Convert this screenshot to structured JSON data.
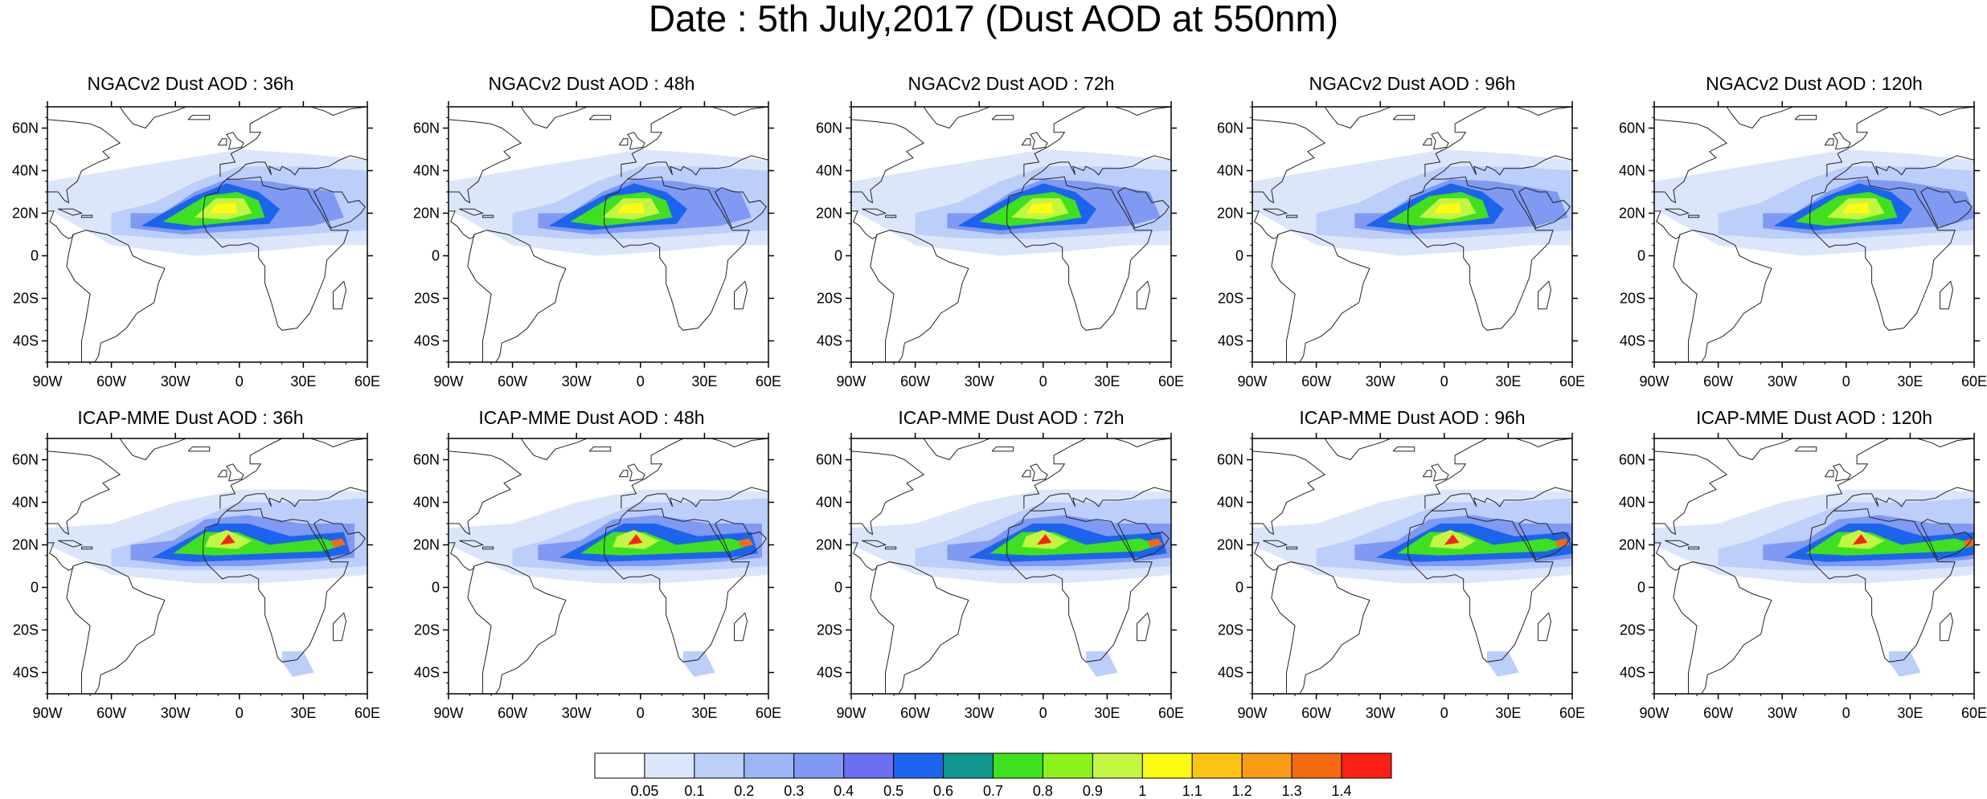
{
  "title": "Date : 5th July,2017 (Dust AOD at 550nm)",
  "panels": [
    {
      "model": "NGACv2",
      "title": "NGACv2 Dust AOD : 36h",
      "lead": "36h"
    },
    {
      "model": "NGACv2",
      "title": "NGACv2 Dust AOD : 48h",
      "lead": "48h"
    },
    {
      "model": "NGACv2",
      "title": "NGACv2 Dust AOD : 72h",
      "lead": "72h"
    },
    {
      "model": "NGACv2",
      "title": "NGACv2 Dust AOD : 96h",
      "lead": "96h"
    },
    {
      "model": "NGACv2",
      "title": "NGACv2 Dust AOD : 120h",
      "lead": "120h"
    },
    {
      "model": "ICAP-MME",
      "title": "ICAP-MME Dust AOD : 36h",
      "lead": "36h"
    },
    {
      "model": "ICAP-MME",
      "title": "ICAP-MME Dust AOD : 48h",
      "lead": "48h"
    },
    {
      "model": "ICAP-MME",
      "title": "ICAP-MME Dust AOD : 72h",
      "lead": "72h"
    },
    {
      "model": "ICAP-MME",
      "title": "ICAP-MME Dust AOD : 96h",
      "lead": "96h"
    },
    {
      "model": "ICAP-MME",
      "title": "ICAP-MME Dust AOD : 120h",
      "lead": "120h"
    }
  ],
  "lat_labels": [
    "60N",
    "40N",
    "20N",
    "0",
    "20S",
    "40S"
  ],
  "lat_values": [
    60,
    40,
    20,
    0,
    -20,
    -40
  ],
  "lon_labels": [
    "90W",
    "60W",
    "30W",
    "0",
    "30E",
    "60E"
  ],
  "lon_values": [
    -90,
    -60,
    -30,
    0,
    30,
    60
  ],
  "map_extent": {
    "lon_min": -90,
    "lon_max": 60,
    "lat_min": -50,
    "lat_max": 70
  },
  "colorbar": {
    "labels": [
      "0.05",
      "0.1",
      "0.2",
      "0.3",
      "0.4",
      "0.5",
      "0.6",
      "0.7",
      "0.8",
      "0.9",
      "1",
      "1.1",
      "1.2",
      "1.3",
      "1.4"
    ],
    "colors": [
      "#ffffff",
      "#dce6fb",
      "#bccefa",
      "#9bb6f7",
      "#8099f2",
      "#6a6ff0",
      "#1c64ee",
      "#12968f",
      "#3fe01f",
      "#8cf21a",
      "#c3f542",
      "#fbfb14",
      "#fbc314",
      "#fb9a14",
      "#f46a0f",
      "#fb1f14"
    ]
  }
}
